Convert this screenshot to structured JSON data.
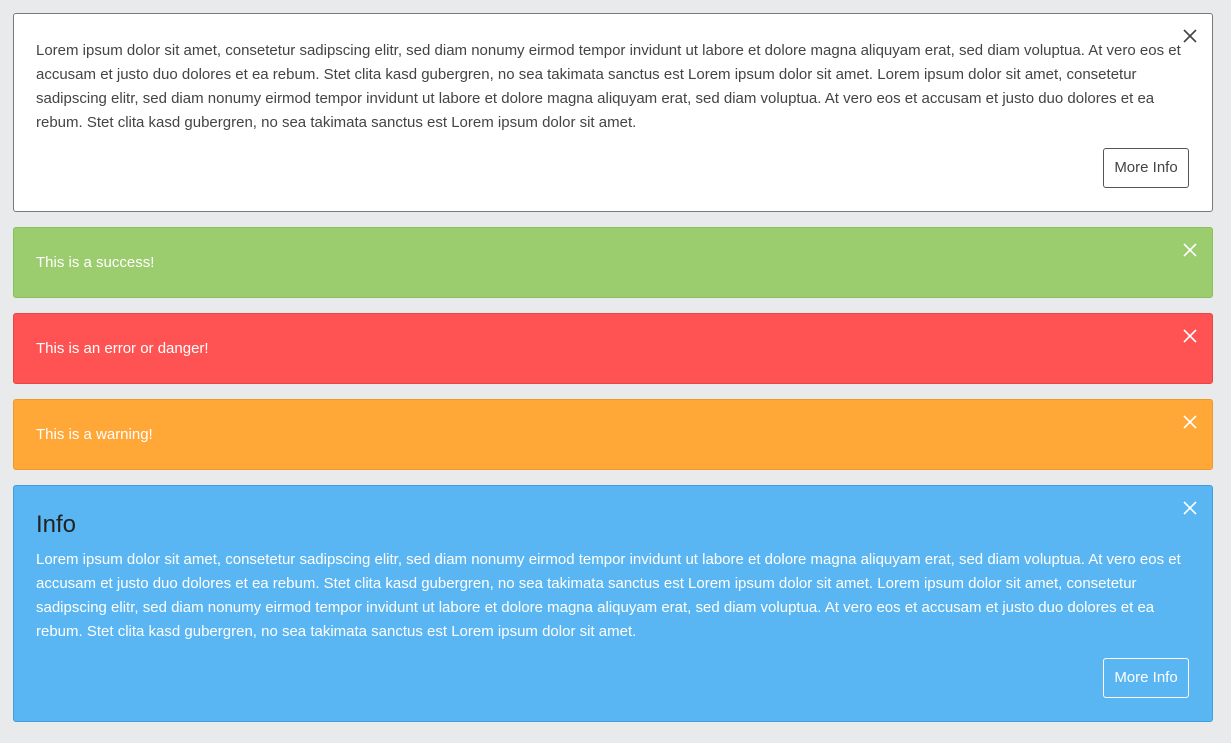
{
  "alerts": {
    "default": {
      "body": "Lorem ipsum dolor sit amet, consetetur sadipscing elitr, sed diam nonumy eirmod tempor invidunt ut labore et dolore magna aliquyam erat, sed diam voluptua. At vero eos et accusam et justo duo dolores et ea rebum. Stet clita kasd gubergren, no sea takimata sanctus est Lorem ipsum dolor sit amet. Lorem ipsum dolor sit amet, consetetur sadipscing elitr, sed diam nonumy eirmod tempor invidunt ut labore et dolore magna aliquyam erat, sed diam voluptua. At vero eos et accusam et justo duo dolores et ea rebum. Stet clita kasd gubergren, no sea takimata sanctus est Lorem ipsum dolor sit amet.",
      "button_label": "More Info"
    },
    "success": {
      "text": "This is a success!"
    },
    "danger": {
      "text": "This is an error or danger!"
    },
    "warning": {
      "text": "This is a warning!"
    },
    "info": {
      "title": "Info",
      "body": "Lorem ipsum dolor sit amet, consetetur sadipscing elitr, sed diam nonumy eirmod tempor invidunt ut labore et dolore magna aliquyam erat, sed diam voluptua. At vero eos et accusam et justo duo dolores et ea rebum. Stet clita kasd gubergren, no sea takimata sanctus est Lorem ipsum dolor sit amet. Lorem ipsum dolor sit amet, consetetur sadipscing elitr, sed diam nonumy eirmod tempor invidunt ut labore et dolore magna aliquyam erat, sed diam voluptua. At vero eos et accusam et justo duo dolores et ea rebum. Stet clita kasd gubergren, no sea takimata sanctus est Lorem ipsum dolor sit amet.",
      "button_label": "More Info"
    }
  },
  "icons": {
    "close": "close-icon"
  },
  "colors": {
    "page_background": "#e9eaec",
    "default_background": "#ffffff",
    "success": "#9bcc6e",
    "danger": "#ff5252",
    "warning": "#ffa737",
    "info": "#59b6f2"
  }
}
